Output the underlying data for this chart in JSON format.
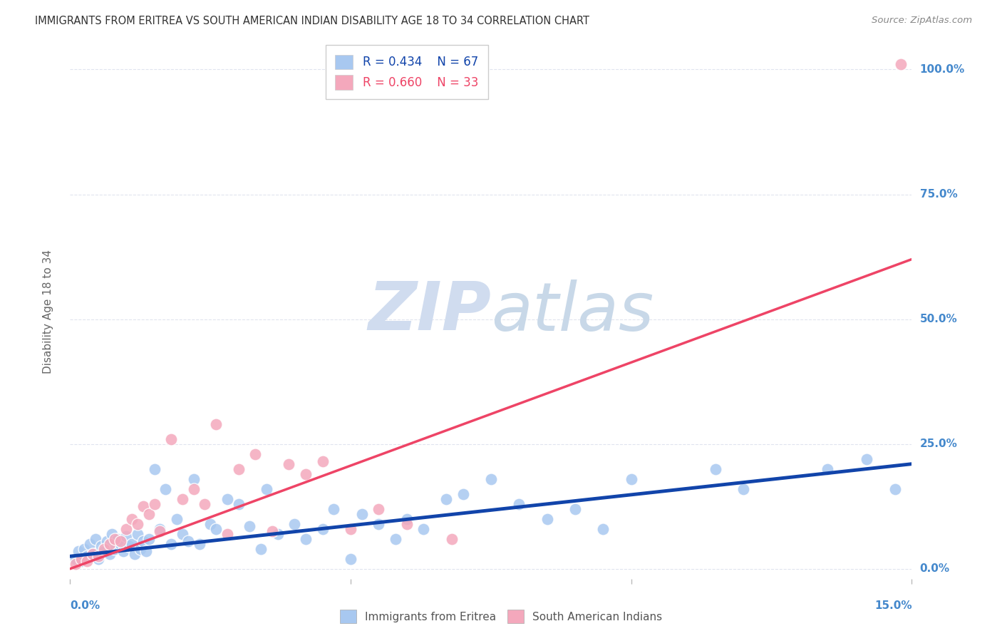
{
  "title": "IMMIGRANTS FROM ERITREA VS SOUTH AMERICAN INDIAN DISABILITY AGE 18 TO 34 CORRELATION CHART",
  "source": "Source: ZipAtlas.com",
  "ylabel": "Disability Age 18 to 34",
  "xmin": 0.0,
  "xmax": 15.0,
  "ymin": -2.0,
  "ymax": 105.0,
  "legend_blue_r": "R = 0.434",
  "legend_blue_n": "N = 67",
  "legend_pink_r": "R = 0.660",
  "legend_pink_n": "N = 33",
  "blue_color": "#A8C8F0",
  "pink_color": "#F4A8BC",
  "blue_line_color": "#1144AA",
  "pink_line_color": "#EE4466",
  "watermark_zip_color": "#D0DCEF",
  "watermark_atlas_color": "#C8D8E8",
  "title_color": "#333333",
  "axis_label_color": "#4488CC",
  "grid_color": "#E0E4EE",
  "blue_scatter_x": [
    0.1,
    0.15,
    0.2,
    0.25,
    0.3,
    0.35,
    0.4,
    0.45,
    0.5,
    0.55,
    0.6,
    0.65,
    0.7,
    0.75,
    0.8,
    0.85,
    0.9,
    0.95,
    1.0,
    1.05,
    1.1,
    1.15,
    1.2,
    1.25,
    1.3,
    1.35,
    1.4,
    1.5,
    1.6,
    1.7,
    1.8,
    1.9,
    2.0,
    2.1,
    2.2,
    2.3,
    2.5,
    2.6,
    2.8,
    3.0,
    3.2,
    3.4,
    3.5,
    3.7,
    4.0,
    4.2,
    4.5,
    4.7,
    5.0,
    5.2,
    5.5,
    5.8,
    6.0,
    6.3,
    6.7,
    7.0,
    7.5,
    8.0,
    8.5,
    9.0,
    9.5,
    10.0,
    11.5,
    12.0,
    13.5,
    14.2,
    14.7
  ],
  "blue_scatter_y": [
    2.0,
    3.5,
    1.5,
    4.0,
    2.5,
    5.0,
    3.0,
    6.0,
    2.0,
    4.5,
    3.5,
    5.5,
    3.0,
    7.0,
    4.0,
    6.0,
    5.0,
    3.5,
    6.5,
    4.5,
    5.0,
    3.0,
    7.0,
    4.0,
    5.5,
    3.5,
    6.0,
    20.0,
    8.0,
    16.0,
    5.0,
    10.0,
    7.0,
    5.5,
    18.0,
    5.0,
    9.0,
    8.0,
    14.0,
    13.0,
    8.5,
    4.0,
    16.0,
    7.0,
    9.0,
    6.0,
    8.0,
    12.0,
    2.0,
    11.0,
    9.0,
    6.0,
    10.0,
    8.0,
    14.0,
    15.0,
    18.0,
    13.0,
    10.0,
    12.0,
    8.0,
    18.0,
    20.0,
    16.0,
    20.0,
    22.0,
    16.0
  ],
  "pink_scatter_x": [
    0.1,
    0.2,
    0.3,
    0.4,
    0.5,
    0.6,
    0.7,
    0.8,
    0.9,
    1.0,
    1.1,
    1.2,
    1.3,
    1.4,
    1.5,
    1.6,
    1.8,
    2.0,
    2.2,
    2.4,
    2.6,
    2.8,
    3.0,
    3.3,
    3.6,
    3.9,
    4.2,
    4.5,
    5.0,
    5.5,
    6.0,
    6.8,
    14.8
  ],
  "pink_scatter_y": [
    1.0,
    2.0,
    1.5,
    3.0,
    2.5,
    4.0,
    5.0,
    6.0,
    5.5,
    8.0,
    10.0,
    9.0,
    12.5,
    11.0,
    13.0,
    7.5,
    26.0,
    14.0,
    16.0,
    13.0,
    29.0,
    7.0,
    20.0,
    23.0,
    7.5,
    21.0,
    19.0,
    21.5,
    8.0,
    12.0,
    9.0,
    6.0,
    101.0
  ],
  "blue_line_x": [
    0.0,
    15.0
  ],
  "blue_line_y": [
    2.5,
    21.0
  ],
  "pink_line_x": [
    0.0,
    15.0
  ],
  "pink_line_y": [
    0.0,
    62.0
  ]
}
